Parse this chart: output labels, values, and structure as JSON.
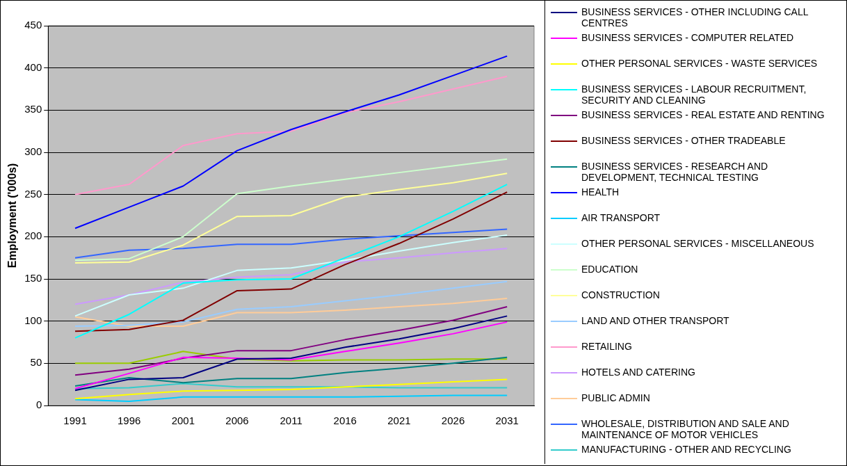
{
  "chart_data": {
    "type": "line",
    "ylabel": "Employment ('000s)",
    "categories": [
      "1991",
      "1996",
      "2001",
      "2006",
      "2011",
      "2016",
      "2021",
      "2026",
      "2031"
    ],
    "ylim": [
      0,
      450
    ],
    "yticks": [
      0,
      50,
      100,
      150,
      200,
      250,
      300,
      350,
      400,
      450
    ],
    "grid": "y",
    "legend": "right",
    "marker": "none",
    "line_style": "solid",
    "series": [
      {
        "name": "BUSINESS SERVICES - OTHER INCLUDING CALL CENTRES",
        "color": "#000080",
        "values": [
          18,
          31,
          33,
          55,
          56,
          69,
          79,
          91,
          106
        ]
      },
      {
        "name": "BUSINESS SERVICES - COMPUTER RELATED",
        "color": "#ff00ff",
        "values": [
          20,
          38,
          57,
          56,
          54,
          64,
          74,
          85,
          99
        ]
      },
      {
        "name": "OTHER PERSONAL SERVICES - WASTE SERVICES",
        "color": "#ffff00",
        "values": [
          8,
          13,
          17,
          18,
          19,
          22,
          25,
          28,
          31
        ]
      },
      {
        "name": "BUSINESS SERVICES - LABOUR RECRUITMENT, SECURITY AND CLEANING",
        "color": "#00ffff",
        "values": [
          80,
          108,
          145,
          149,
          150,
          175,
          200,
          230,
          262
        ]
      },
      {
        "name": "BUSINESS SERVICES - REAL ESTATE AND RENTING",
        "color": "#800080",
        "values": [
          36,
          43,
          56,
          65,
          65,
          78,
          89,
          101,
          117
        ]
      },
      {
        "name": "BUSINESS SERVICES - OTHER TRADEABLE",
        "color": "#800000",
        "values": [
          88,
          90,
          101,
          136,
          138,
          167,
          192,
          221,
          253
        ]
      },
      {
        "name": "BUSINESS SERVICES - RESEARCH AND DEVELOPMENT, TECHNICAL TESTING",
        "color": "#008080",
        "values": [
          23,
          33,
          27,
          32,
          32,
          39,
          44,
          50,
          57
        ]
      },
      {
        "name": "HEALTH",
        "color": "#0000ff",
        "values": [
          210,
          235,
          260,
          302,
          327,
          348,
          368,
          391,
          414
        ]
      },
      {
        "name": "AIR TRANSPORT",
        "color": "#00ccff",
        "values": [
          7,
          5,
          10,
          10,
          10,
          10,
          11,
          12,
          12
        ]
      },
      {
        "name": "OTHER PERSONAL SERVICES - MISCELLANEOUS",
        "color": "#ccffff",
        "values": [
          106,
          131,
          139,
          160,
          163,
          172,
          183,
          193,
          202
        ]
      },
      {
        "name": "EDUCATION",
        "color": "#ccffcc",
        "values": [
          172,
          174,
          200,
          251,
          260,
          268,
          276,
          284,
          292
        ]
      },
      {
        "name": "CONSTRUCTION",
        "color": "#ffff99",
        "values": [
          169,
          170,
          190,
          224,
          225,
          247,
          256,
          264,
          275
        ]
      },
      {
        "name": "LAND AND OTHER TRANSPORT",
        "color": "#99ccff",
        "values": [
          94,
          95,
          99,
          114,
          117,
          124,
          131,
          139,
          147
        ]
      },
      {
        "name": "RETAILING",
        "color": "#ff99cc",
        "values": [
          250,
          262,
          308,
          322,
          325,
          347,
          360,
          375,
          390
        ]
      },
      {
        "name": "HOTELS AND CATERING",
        "color": "#cc99ff",
        "values": [
          120,
          131,
          146,
          152,
          155,
          170,
          175,
          181,
          186
        ]
      },
      {
        "name": "PUBLIC ADMIN",
        "color": "#ffcc99",
        "values": [
          105,
          94,
          94,
          110,
          110,
          113,
          117,
          121,
          127
        ]
      },
      {
        "name": "WHOLESALE, DISTRIBUTION AND SALE AND MAINTENANCE OF MOTOR VEHICLES",
        "color": "#3366ff",
        "values": [
          175,
          184,
          186,
          191,
          191,
          197,
          201,
          205,
          209
        ]
      },
      {
        "name": "MANUFACTURING - OTHER AND RECYCLING",
        "color": "#33cccc",
        "values": [
          20,
          21,
          26,
          22,
          22,
          22,
          21,
          21,
          21
        ]
      },
      {
        "color": "#99cc00",
        "values": [
          50,
          50,
          64,
          55,
          53,
          54,
          54,
          55,
          55
        ]
      }
    ]
  }
}
